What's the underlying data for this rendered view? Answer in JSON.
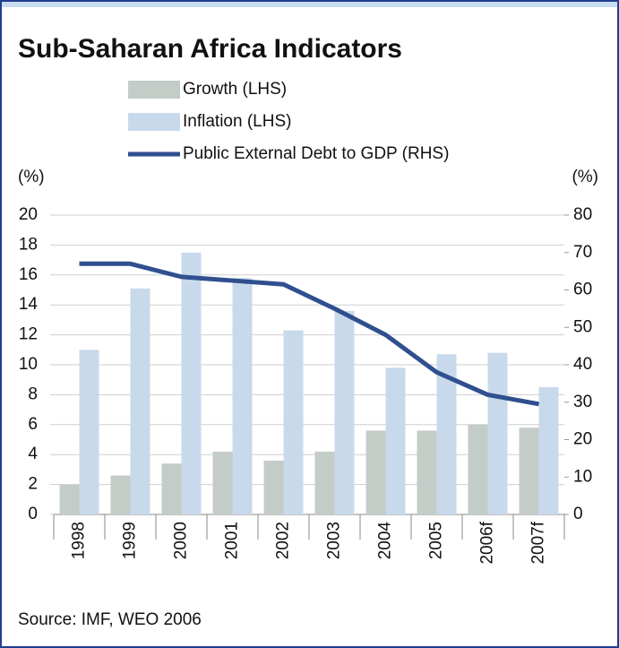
{
  "chart_data": {
    "type": "bar",
    "title": "Sub-Saharan Africa Indicators",
    "y_unit_left": "(%)",
    "y_unit_right": "(%)",
    "categories": [
      "1998",
      "1999",
      "2000",
      "2001",
      "2002",
      "2003",
      "2004",
      "2005",
      "2006f",
      "2007f"
    ],
    "series": [
      {
        "name": "Growth (LHS)",
        "color": "#c4ccc8",
        "type": "bar",
        "values": [
          2.0,
          2.6,
          3.4,
          4.2,
          3.6,
          4.2,
          5.6,
          5.6,
          6.0,
          5.8
        ]
      },
      {
        "name": "Inflation (LHS)",
        "color": "#c9d9ec",
        "type": "bar",
        "values": [
          11.0,
          15.1,
          17.5,
          15.8,
          12.3,
          13.6,
          9.8,
          10.7,
          10.8,
          8.5
        ]
      },
      {
        "name": "Public External Debt to GDP (RHS)",
        "color": "#2f4f8f",
        "type": "line",
        "axis": "y2",
        "values": [
          67,
          67,
          63.5,
          62.5,
          61.5,
          55,
          48,
          38,
          32,
          29.5
        ]
      }
    ],
    "ylim": [
      0,
      20
    ],
    "yticks": [
      0,
      2,
      4,
      6,
      8,
      10,
      12,
      14,
      16,
      18,
      20
    ],
    "y2lim": [
      0,
      80
    ],
    "y2ticks": [
      0,
      10,
      20,
      30,
      40,
      50,
      60,
      70,
      80
    ],
    "grid": true,
    "source": "Source: IMF, WEO 2006"
  }
}
